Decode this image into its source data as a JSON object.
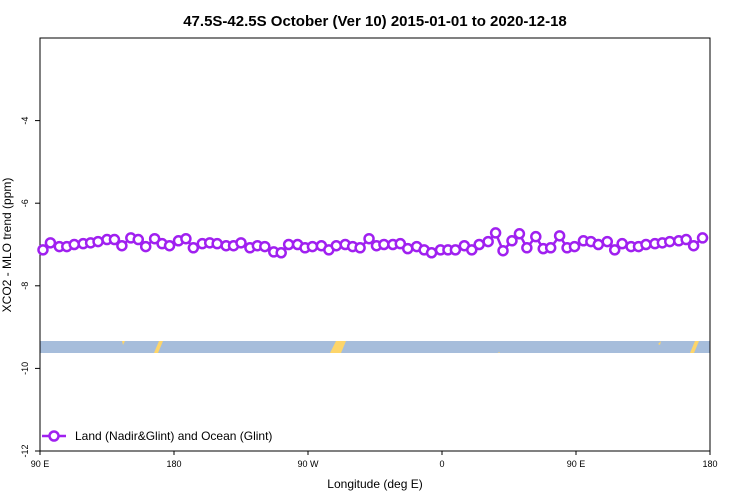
{
  "chart_data": {
    "type": "line",
    "title": "47.5S-42.5S October (Ver 10)   2015-01-01 to 2020-12-18",
    "x_label": "Longitude (deg E)",
    "y_label": "XCO2 - MLO trend (ppm)",
    "xlim": [
      90,
      540
    ],
    "xticks": [
      {
        "value": 90,
        "label": "90 E"
      },
      {
        "value": 180,
        "label": "180"
      },
      {
        "value": 270,
        "label": "90 W"
      },
      {
        "value": 360,
        "label": "0"
      },
      {
        "value": 450,
        "label": "90 E"
      },
      {
        "value": 540,
        "label": "180"
      }
    ],
    "ylim": [
      -12,
      -2
    ],
    "yticks": [
      -12,
      -10,
      -8,
      -6,
      -4
    ],
    "legend_position": "lower left",
    "x": [
      92,
      97,
      103,
      108,
      113,
      119,
      124,
      129,
      135,
      140,
      145,
      151,
      156,
      161,
      167,
      172,
      177,
      183,
      188,
      193,
      199,
      204,
      209,
      215,
      220,
      225,
      231,
      236,
      241,
      247,
      252,
      257,
      263,
      268,
      273,
      279,
      284,
      289,
      295,
      300,
      305,
      311,
      316,
      321,
      327,
      332,
      337,
      343,
      348,
      353,
      359,
      364,
      369,
      375,
      380,
      385,
      391,
      396,
      401,
      407,
      412,
      417,
      423,
      428,
      433,
      439,
      444,
      449,
      455,
      460,
      465,
      471,
      476,
      481,
      487,
      492,
      497,
      503,
      508,
      513,
      519,
      524,
      529,
      535
    ],
    "series": [
      {
        "name": "Land (Nadir&Glint) and Ocean (Glint)",
        "color": "#a020f0",
        "values": [
          -7.13,
          -6.96,
          -7.05,
          -7.05,
          -7.0,
          -6.98,
          -6.96,
          -6.93,
          -6.88,
          -6.88,
          -7.03,
          -6.84,
          -6.88,
          -7.05,
          -6.86,
          -6.98,
          -7.03,
          -6.91,
          -6.86,
          -7.08,
          -6.98,
          -6.96,
          -6.98,
          -7.03,
          -7.03,
          -6.96,
          -7.08,
          -7.03,
          -7.05,
          -7.18,
          -7.2,
          -7.0,
          -7.0,
          -7.08,
          -7.05,
          -7.03,
          -7.13,
          -7.03,
          -7.0,
          -7.05,
          -7.08,
          -6.86,
          -7.03,
          -7.0,
          -7.0,
          -6.98,
          -7.1,
          -7.05,
          -7.13,
          -7.2,
          -7.13,
          -7.13,
          -7.13,
          -7.03,
          -7.13,
          -7.0,
          -6.93,
          -6.72,
          -7.15,
          -6.91,
          -6.74,
          -7.08,
          -6.81,
          -7.1,
          -7.08,
          -6.79,
          -7.08,
          -7.05,
          -6.91,
          -6.93,
          -7.0,
          -6.93,
          -7.13,
          -6.98,
          -7.05,
          -7.05,
          -7.0,
          -6.98,
          -6.96,
          -6.93,
          -6.91,
          -6.88,
          -7.03,
          -6.84
        ]
      }
    ]
  }
}
